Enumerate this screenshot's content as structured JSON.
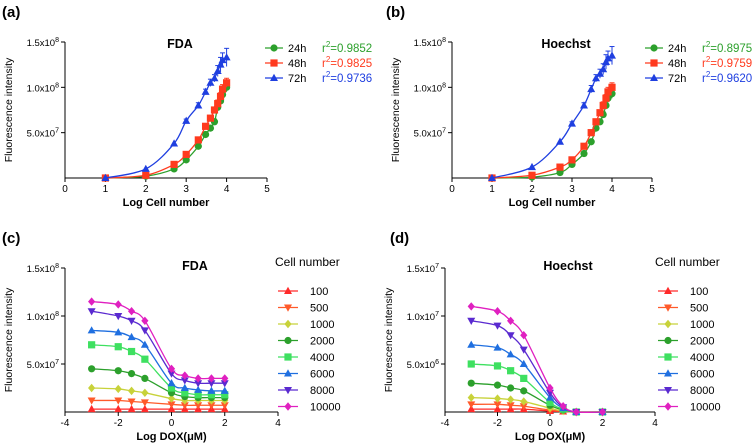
{
  "chart_data": [
    {
      "panel_label": "(a)",
      "type": "scatter",
      "title": "FDA",
      "xlabel": "Log Cell number",
      "ylabel": "Fluorescence intensity",
      "xlim": [
        0,
        5
      ],
      "ylim": [
        0,
        150000000
      ],
      "xticks": [
        0,
        1,
        2,
        3,
        4,
        5
      ],
      "yticks": [
        {
          "value": 50000000,
          "mant": "5.0x10",
          "exp": "7"
        },
        {
          "value": 100000000,
          "mant": "1.0x10",
          "exp": "8"
        },
        {
          "value": 150000000,
          "mant": "1.5x10",
          "exp": "8"
        }
      ],
      "legend": [
        {
          "name": "24h",
          "color": "#2ca02c",
          "marker": "circle",
          "r2_prefix": "r",
          "r2_exp": "2",
          "r2_value": "=0.9852"
        },
        {
          "name": "48h",
          "color": "#ff3a1e",
          "marker": "square",
          "r2_prefix": "r",
          "r2_exp": "2",
          "r2_value": "=0.9825"
        },
        {
          "name": "72h",
          "color": "#1f3fe0",
          "marker": "triangle-up",
          "r2_prefix": "r",
          "r2_exp": "2",
          "r2_value": "=0.9736"
        }
      ],
      "series": [
        {
          "name": "24h",
          "color": "#2ca02c",
          "marker": "circle",
          "x": [
            1,
            2,
            2.7,
            3,
            3.3,
            3.48,
            3.6,
            3.7,
            3.78,
            3.85,
            3.9,
            4
          ],
          "y": [
            0,
            2000000,
            10000000,
            20000000,
            35000000,
            48000000,
            55000000,
            62000000,
            78000000,
            85000000,
            92000000,
            100000000
          ],
          "err": [
            0,
            0,
            0,
            1000000,
            1500000,
            2000000,
            3000000,
            3000000,
            3000000,
            3000000,
            4000000,
            5000000
          ]
        },
        {
          "name": "48h",
          "color": "#ff3a1e",
          "marker": "square",
          "x": [
            1,
            2,
            2.7,
            3,
            3.3,
            3.48,
            3.6,
            3.7,
            3.78,
            3.85,
            3.9,
            4
          ],
          "y": [
            0,
            3000000,
            15000000,
            26000000,
            42000000,
            57000000,
            66000000,
            75000000,
            82000000,
            90000000,
            98000000,
            105000000
          ],
          "err": [
            0,
            0,
            0,
            1000000,
            2000000,
            2000000,
            3000000,
            3000000,
            4000000,
            4000000,
            5000000,
            5000000
          ]
        },
        {
          "name": "72h",
          "color": "#1f3fe0",
          "marker": "triangle-up",
          "x": [
            1,
            2,
            2.7,
            3,
            3.3,
            3.48,
            3.6,
            3.7,
            3.78,
            3.85,
            3.9,
            4
          ],
          "y": [
            0,
            10000000,
            38000000,
            63000000,
            80000000,
            95000000,
            105000000,
            110000000,
            118000000,
            125000000,
            130000000,
            133000000
          ],
          "err": [
            0,
            0,
            0,
            2000000,
            3000000,
            3000000,
            4000000,
            4000000,
            6000000,
            8000000,
            8000000,
            10000000
          ]
        }
      ]
    },
    {
      "panel_label": "(b)",
      "type": "scatter",
      "title": "Hoechst",
      "xlabel": "Log Cell number",
      "ylabel": "Fluorescence intensity",
      "xlim": [
        0,
        5
      ],
      "ylim": [
        0,
        150000000
      ],
      "xticks": [
        0,
        1,
        2,
        3,
        4,
        5
      ],
      "yticks": [
        {
          "value": 50000000,
          "mant": "5.0x10",
          "exp": "7"
        },
        {
          "value": 100000000,
          "mant": "1.0x10",
          "exp": "8"
        },
        {
          "value": 150000000,
          "mant": "1.5x10",
          "exp": "8"
        }
      ],
      "legend": [
        {
          "name": "24h",
          "color": "#2ca02c",
          "marker": "circle",
          "r2_prefix": "r",
          "r2_exp": "2",
          "r2_value": "=0.8975"
        },
        {
          "name": "48h",
          "color": "#ff3a1e",
          "marker": "square",
          "r2_prefix": "r",
          "r2_exp": "2",
          "r2_value": "=0.9759"
        },
        {
          "name": "72h",
          "color": "#1f3fe0",
          "marker": "triangle-up",
          "r2_prefix": "r",
          "r2_exp": "2",
          "r2_value": "=0.9620"
        }
      ],
      "series": [
        {
          "name": "24h",
          "color": "#2ca02c",
          "marker": "circle",
          "x": [
            1,
            2,
            2.7,
            3,
            3.3,
            3.48,
            3.6,
            3.7,
            3.78,
            3.85,
            3.9,
            4
          ],
          "y": [
            0,
            1000000,
            6000000,
            15000000,
            27000000,
            40000000,
            55000000,
            62000000,
            70000000,
            80000000,
            88000000,
            93000000
          ],
          "err": [
            0,
            0,
            0,
            1000000,
            1500000,
            2000000,
            3000000,
            3000000,
            3000000,
            3000000,
            4000000,
            5000000
          ]
        },
        {
          "name": "48h",
          "color": "#ff3a1e",
          "marker": "square",
          "x": [
            1,
            2,
            2.7,
            3,
            3.3,
            3.48,
            3.6,
            3.7,
            3.78,
            3.85,
            3.9,
            4
          ],
          "y": [
            0,
            3000000,
            12000000,
            20000000,
            35000000,
            50000000,
            62000000,
            72000000,
            80000000,
            88000000,
            95000000,
            100000000
          ],
          "err": [
            0,
            0,
            0,
            1000000,
            2000000,
            2000000,
            3000000,
            3000000,
            4000000,
            4000000,
            5000000,
            5000000
          ]
        },
        {
          "name": "72h",
          "color": "#1f3fe0",
          "marker": "triangle-up",
          "x": [
            1,
            2,
            2.7,
            3,
            3.3,
            3.48,
            3.6,
            3.7,
            3.78,
            3.85,
            3.9,
            4
          ],
          "y": [
            0,
            12000000,
            40000000,
            60000000,
            80000000,
            98000000,
            110000000,
            115000000,
            120000000,
            128000000,
            132000000,
            135000000
          ],
          "err": [
            0,
            0,
            0,
            2000000,
            3000000,
            4000000,
            4000000,
            5000000,
            6000000,
            8000000,
            8000000,
            10000000
          ]
        }
      ]
    },
    {
      "panel_label": "(c)",
      "type": "scatter",
      "title": "FDA",
      "xlabel": "Log DOX(μM)",
      "ylabel": "Fluorescence intensity",
      "xlim": [
        -4,
        4
      ],
      "ylim": [
        0,
        150000000
      ],
      "xticks": [
        -4,
        -2,
        0,
        2,
        4
      ],
      "yticks": [
        {
          "value": 50000000,
          "mant": "5.0x10",
          "exp": "7"
        },
        {
          "value": 100000000,
          "mant": "1.0x10",
          "exp": "8"
        },
        {
          "value": 150000000,
          "mant": "1.5x10",
          "exp": "8"
        }
      ],
      "legend_title": "Cell number",
      "x": [
        -3,
        -2,
        -1.5,
        -1,
        0,
        0.5,
        1,
        1.5,
        2
      ],
      "series": [
        {
          "name": "100",
          "color": "#ff2a2a",
          "marker": "triangle-up",
          "y": [
            3000000,
            3000000,
            3000000,
            3000000,
            3000000,
            3000000,
            3000000,
            3000000,
            3000000
          ]
        },
        {
          "name": "500",
          "color": "#ff5a2a",
          "marker": "triangle-down",
          "y": [
            12000000,
            12000000,
            11000000,
            10000000,
            8000000,
            7000000,
            7000000,
            7000000,
            7000000
          ]
        },
        {
          "name": "1000",
          "color": "#c8d23a",
          "marker": "diamond",
          "y": [
            25000000,
            24000000,
            22000000,
            20000000,
            14000000,
            12000000,
            12000000,
            12000000,
            12000000
          ]
        },
        {
          "name": "2000",
          "color": "#2ca02c",
          "marker": "circle",
          "y": [
            45000000,
            43000000,
            40000000,
            35000000,
            20000000,
            16000000,
            15000000,
            15000000,
            15000000
          ]
        },
        {
          "name": "4000",
          "color": "#3ee060",
          "marker": "square",
          "y": [
            70000000,
            68000000,
            63000000,
            55000000,
            25000000,
            20000000,
            18000000,
            18000000,
            18000000
          ]
        },
        {
          "name": "6000",
          "color": "#1f6fe0",
          "marker": "triangle-up",
          "y": [
            85000000,
            83000000,
            78000000,
            70000000,
            30000000,
            25000000,
            23000000,
            22000000,
            22000000
          ]
        },
        {
          "name": "8000",
          "color": "#5a2ad0",
          "marker": "triangle-down",
          "y": [
            105000000,
            100000000,
            95000000,
            85000000,
            40000000,
            33000000,
            30000000,
            30000000,
            30000000
          ]
        },
        {
          "name": "10000",
          "color": "#e020c0",
          "marker": "diamond",
          "y": [
            115000000,
            112000000,
            105000000,
            95000000,
            45000000,
            38000000,
            35000000,
            35000000,
            35000000
          ]
        }
      ]
    },
    {
      "panel_label": "(d)",
      "type": "scatter",
      "title": "Hoechst",
      "xlabel": "Log DOX(μM)",
      "ylabel": "Fluorescence intensity",
      "xlim": [
        -4,
        4
      ],
      "ylim": [
        0,
        15000000
      ],
      "xticks": [
        -4,
        -2,
        0,
        2,
        4
      ],
      "yticks": [
        {
          "value": 5000000,
          "mant": "5.0x10",
          "exp": "6"
        },
        {
          "value": 10000000,
          "mant": "1.0x10",
          "exp": "7"
        },
        {
          "value": 15000000,
          "mant": "1.5x10",
          "exp": "7"
        }
      ],
      "legend_title": "Cell number",
      "x": [
        -3,
        -2,
        -1.5,
        -1,
        0,
        0.5,
        1,
        2
      ],
      "series": [
        {
          "name": "100",
          "color": "#ff2a2a",
          "marker": "triangle-up",
          "y": [
            300000,
            300000,
            300000,
            300000,
            100000,
            50000,
            0,
            0
          ]
        },
        {
          "name": "500",
          "color": "#ff5a2a",
          "marker": "triangle-down",
          "y": [
            800000,
            800000,
            700000,
            600000,
            200000,
            100000,
            0,
            0
          ]
        },
        {
          "name": "1000",
          "color": "#c8d23a",
          "marker": "diamond",
          "y": [
            1500000,
            1400000,
            1300000,
            1100000,
            400000,
            100000,
            0,
            0
          ]
        },
        {
          "name": "2000",
          "color": "#2ca02c",
          "marker": "circle",
          "y": [
            3000000,
            2800000,
            2500000,
            2200000,
            700000,
            200000,
            0,
            0
          ]
        },
        {
          "name": "4000",
          "color": "#3ee060",
          "marker": "square",
          "y": [
            5000000,
            4800000,
            4300000,
            3500000,
            1000000,
            300000,
            0,
            0
          ]
        },
        {
          "name": "6000",
          "color": "#1f6fe0",
          "marker": "triangle-up",
          "y": [
            7000000,
            6700000,
            6000000,
            5000000,
            1500000,
            400000,
            0,
            0
          ]
        },
        {
          "name": "8000",
          "color": "#5a2ad0",
          "marker": "triangle-down",
          "y": [
            9500000,
            9000000,
            8000000,
            6500000,
            2000000,
            500000,
            0,
            0
          ]
        },
        {
          "name": "10000",
          "color": "#e020c0",
          "marker": "diamond",
          "y": [
            11000000,
            10500000,
            9500000,
            8000000,
            2500000,
            600000,
            0,
            0
          ]
        }
      ]
    }
  ]
}
